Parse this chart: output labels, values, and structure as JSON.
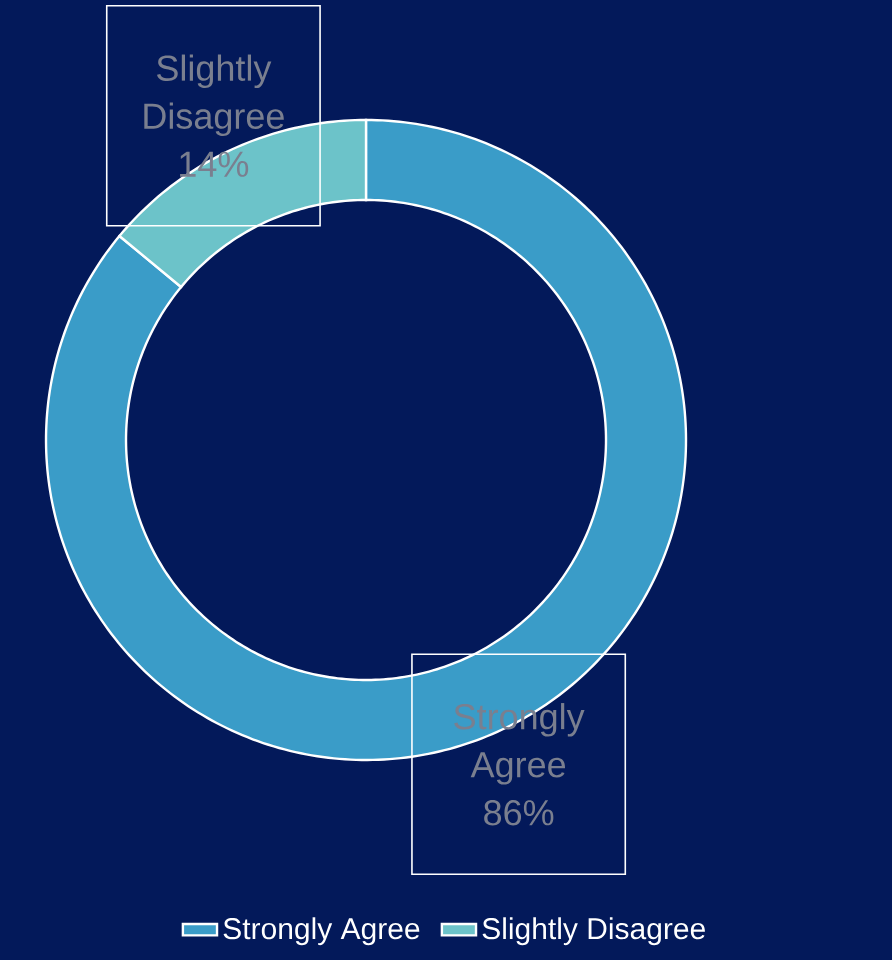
{
  "chart_data": {
    "type": "donut",
    "categories": [
      "Strongly Agree",
      "Slightly Disagree"
    ],
    "values": [
      86,
      14
    ],
    "colors": [
      "#3a9cc8",
      "#6cc3c9"
    ],
    "value_labels": [
      "86%",
      "14%"
    ],
    "legend": "bottom"
  }
}
